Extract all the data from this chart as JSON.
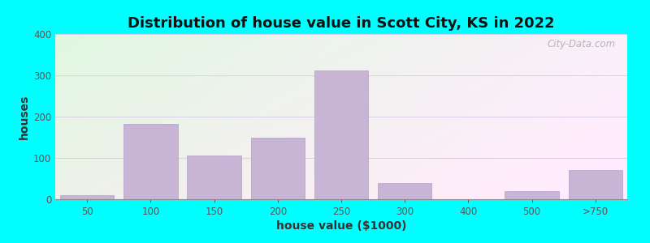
{
  "title": "Distribution of house value in Scott City, KS in 2022",
  "xlabel": "house value ($1000)",
  "ylabel": "houses",
  "categories": [
    "50",
    "100",
    "150",
    "200",
    "250",
    "300",
    "400",
    "500",
    ">750"
  ],
  "bar_heights": [
    10,
    183,
    105,
    150,
    312,
    40,
    0,
    20,
    70
  ],
  "bar_color": "#C8B4D4",
  "bar_edgecolor": "#B0A0C8",
  "yticks": [
    0,
    100,
    200,
    300,
    400
  ],
  "ylim": [
    0,
    400
  ],
  "background_outer": "#00FFFF",
  "grid_color": "#D8D0E8",
  "title_fontsize": 13,
  "axis_label_fontsize": 10,
  "tick_fontsize": 8.5,
  "watermark_text": "City-Data.com"
}
